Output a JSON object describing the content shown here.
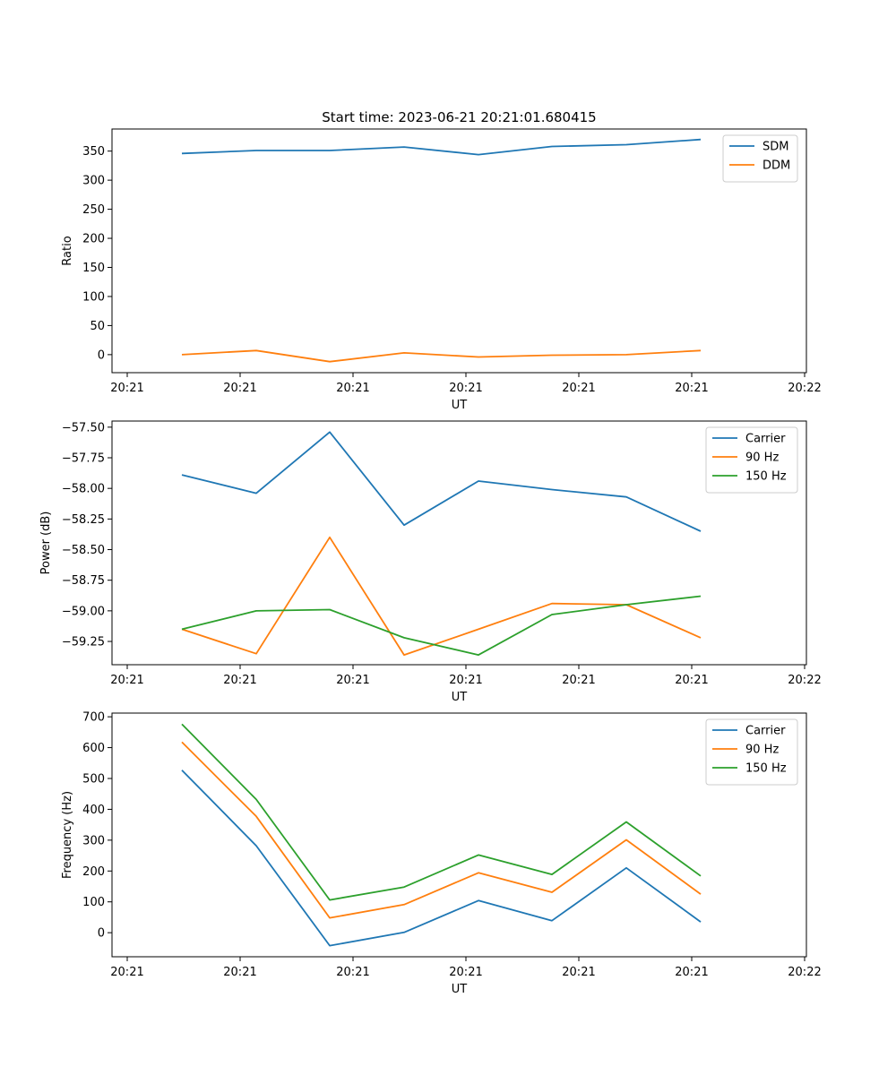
{
  "chart_data": [
    {
      "type": "line",
      "title": "Start time: 2023-06-21 20:21:01.680415",
      "xlabel": "UT",
      "ylabel": "Ratio",
      "x_tick_labels": [
        "20:21",
        "20:21",
        "20:21",
        "20:21",
        "20:21",
        "20:21",
        "20:22"
      ],
      "ylim": [
        -31,
        388
      ],
      "y_ticks": [
        0,
        50,
        100,
        150,
        200,
        250,
        300,
        350
      ],
      "y_tick_labels": [
        "0",
        "50",
        "100",
        "150",
        "200",
        "250",
        "300",
        "350"
      ],
      "legend_position": "top-right",
      "x": [
        0,
        1,
        2,
        3,
        4,
        5,
        6,
        7
      ],
      "series": [
        {
          "name": "SDM",
          "color": "#1f77b4",
          "values": [
            346,
            351,
            351,
            357,
            344,
            358,
            361,
            370
          ]
        },
        {
          "name": "DDM",
          "color": "#ff7f0e",
          "values": [
            0,
            7,
            -12,
            3,
            -4,
            -1,
            0,
            7
          ]
        }
      ]
    },
    {
      "type": "line",
      "title": "",
      "xlabel": "UT",
      "ylabel": "Power (dB)",
      "x_tick_labels": [
        "20:21",
        "20:21",
        "20:21",
        "20:21",
        "20:21",
        "20:21",
        "20:22"
      ],
      "ylim": [
        -59.44,
        -57.45
      ],
      "y_ticks": [
        -59.25,
        -59.0,
        -58.75,
        -58.5,
        -58.25,
        -58.0,
        -57.75,
        -57.5
      ],
      "y_tick_labels": [
        "−59.25",
        "−59.00",
        "−58.75",
        "−58.50",
        "−58.25",
        "−58.00",
        "−57.75",
        "−57.50"
      ],
      "legend_position": "top-right",
      "x": [
        0,
        1,
        2,
        3,
        4,
        5,
        6,
        7
      ],
      "series": [
        {
          "name": "Carrier",
          "color": "#1f77b4",
          "values": [
            -57.89,
            -58.04,
            -57.54,
            -58.3,
            -57.94,
            -58.01,
            -58.07,
            -58.35
          ]
        },
        {
          "name": "90 Hz",
          "color": "#ff7f0e",
          "values": [
            -59.15,
            -59.35,
            -58.4,
            -59.36,
            -59.15,
            -58.94,
            -58.95,
            -59.22
          ]
        },
        {
          "name": "150 Hz",
          "color": "#2ca02c",
          "values": [
            -59.15,
            -59.0,
            -58.99,
            -59.22,
            -59.36,
            -59.03,
            -58.95,
            -58.88
          ]
        }
      ]
    },
    {
      "type": "line",
      "title": "",
      "xlabel": "UT",
      "ylabel": "Frequency (Hz)",
      "x_tick_labels": [
        "20:21",
        "20:21",
        "20:21",
        "20:21",
        "20:21",
        "20:21",
        "20:22"
      ],
      "ylim": [
        -78,
        712
      ],
      "y_ticks": [
        0,
        100,
        200,
        300,
        400,
        500,
        600,
        700
      ],
      "y_tick_labels": [
        "0",
        "100",
        "200",
        "300",
        "400",
        "500",
        "600",
        "700"
      ],
      "legend_position": "top-right",
      "x": [
        0,
        1,
        2,
        3,
        4,
        5,
        6,
        7
      ],
      "series": [
        {
          "name": "Carrier",
          "color": "#1f77b4",
          "values": [
            527,
            282,
            -42,
            1,
            104,
            39,
            210,
            35
          ]
        },
        {
          "name": "90 Hz",
          "color": "#ff7f0e",
          "values": [
            618,
            377,
            48,
            91,
            194,
            131,
            301,
            125
          ]
        },
        {
          "name": "150 Hz",
          "color": "#2ca02c",
          "values": [
            676,
            432,
            106,
            148,
            252,
            189,
            359,
            184
          ]
        }
      ]
    }
  ]
}
